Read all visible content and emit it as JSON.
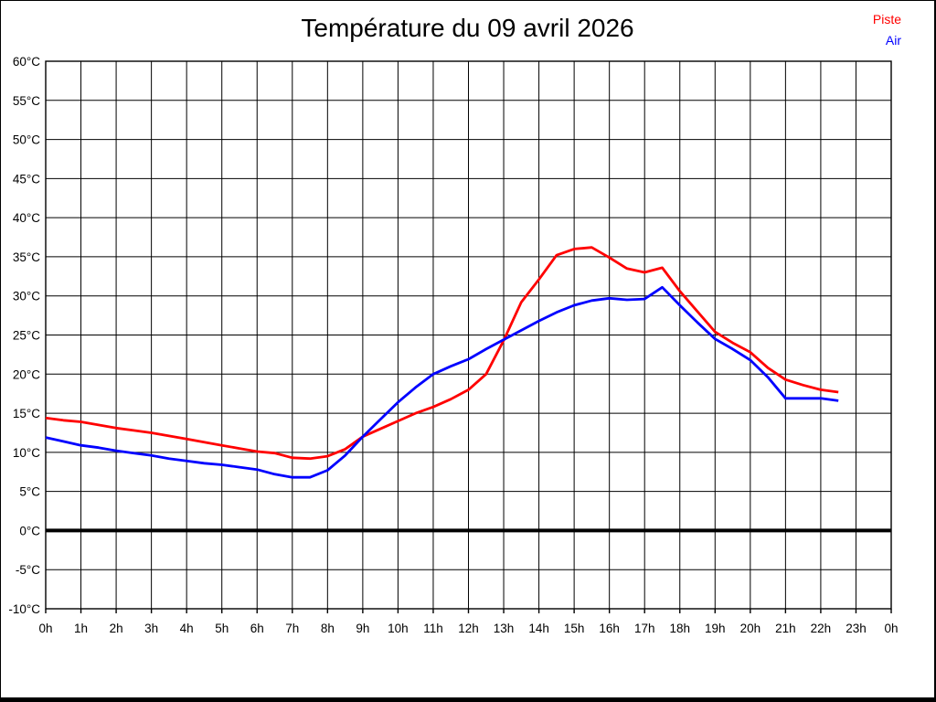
{
  "page": {
    "background_color": "#ffffff",
    "frame_color": "#000000"
  },
  "header": {
    "title": "Température du 09 avril 2026"
  },
  "legend": {
    "position": "top-right",
    "items": [
      {
        "label": "Piste",
        "color": "#ff0000"
      },
      {
        "label": "Air",
        "color": "#0000ff"
      }
    ]
  },
  "chart_data": {
    "type": "line",
    "title": "Température du 09 avril 2026",
    "xlabel": "",
    "ylabel": "",
    "xlim": [
      0,
      24
    ],
    "ylim": [
      -10,
      60
    ],
    "x_tick_step_hours": 1,
    "y_tick_step_degrees": 5,
    "grid": true,
    "grid_color": "#000000",
    "zero_line_value": 0,
    "legend_position": "top-right",
    "x_tick_labels": [
      "0h",
      "1h",
      "2h",
      "3h",
      "4h",
      "5h",
      "6h",
      "7h",
      "8h",
      "9h",
      "10h",
      "11h",
      "12h",
      "13h",
      "14h",
      "15h",
      "16h",
      "17h",
      "18h",
      "19h",
      "20h",
      "21h",
      "22h",
      "23h",
      "0h"
    ],
    "y_tick_labels": [
      "60°C",
      "55°C",
      "50°C",
      "45°C",
      "40°C",
      "35°C",
      "30°C",
      "25°C",
      "20°C",
      "15°C",
      "10°C",
      "5°C",
      "0°C",
      "-5°C",
      "-10°C"
    ],
    "series": [
      {
        "name": "Piste",
        "color": "#ff0000",
        "x": [
          0,
          0.5,
          1,
          1.5,
          2,
          2.5,
          3,
          3.5,
          4,
          4.5,
          5,
          5.5,
          6,
          6.5,
          7,
          7.5,
          8,
          8.5,
          9,
          9.5,
          10,
          10.5,
          11,
          11.5,
          12,
          12.5,
          13,
          13.5,
          14,
          14.5,
          15,
          15.5,
          16,
          16.5,
          17,
          17.5,
          18,
          18.5,
          19,
          19.5,
          20,
          20.5,
          21,
          21.5,
          22,
          22.5
        ],
        "values": [
          14.4,
          14.1,
          13.9,
          13.5,
          13.1,
          12.8,
          12.5,
          12.1,
          11.7,
          11.3,
          10.9,
          10.5,
          10.1,
          9.9,
          9.3,
          9.2,
          9.5,
          10.4,
          12.0,
          13.0,
          14.0,
          15.0,
          15.8,
          16.8,
          18.0,
          20.0,
          24.3,
          29.2,
          32.1,
          35.2,
          36.0,
          36.2,
          34.9,
          33.5,
          33.0,
          33.6,
          30.6,
          28.0,
          25.4,
          24.0,
          22.8,
          20.8,
          19.3,
          18.6,
          18.0,
          17.7
        ]
      },
      {
        "name": "Air",
        "color": "#0000ff",
        "x": [
          0,
          0.5,
          1,
          1.5,
          2,
          2.5,
          3,
          3.5,
          4,
          4.5,
          5,
          5.5,
          6,
          6.5,
          7,
          7.5,
          8,
          8.5,
          9,
          9.5,
          10,
          10.5,
          11,
          11.5,
          12,
          12.5,
          13,
          13.5,
          14,
          14.5,
          15,
          15.5,
          16,
          16.5,
          17,
          17.5,
          18,
          18.5,
          19,
          19.5,
          20,
          20.5,
          21,
          21.5,
          22,
          22.5
        ],
        "values": [
          11.9,
          11.4,
          10.9,
          10.6,
          10.2,
          9.9,
          9.6,
          9.2,
          8.9,
          8.6,
          8.4,
          8.1,
          7.8,
          7.2,
          6.8,
          6.8,
          7.7,
          9.6,
          12.0,
          14.2,
          16.4,
          18.3,
          20.0,
          21.0,
          21.9,
          23.2,
          24.4,
          25.6,
          26.8,
          27.9,
          28.8,
          29.4,
          29.7,
          29.5,
          29.6,
          31.1,
          28.8,
          26.6,
          24.5,
          23.2,
          21.8,
          19.6,
          16.9,
          16.9,
          16.9,
          16.6
        ]
      }
    ]
  }
}
